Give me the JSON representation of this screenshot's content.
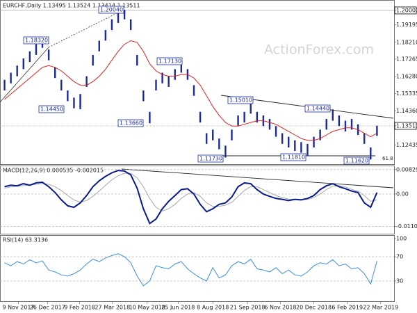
{
  "chart_data": [
    {
      "type": "ohlc",
      "title": "EURCHF,Daily  1.13495 1.13524 1.13414 1.13511",
      "watermark": "ActionForex.com",
      "color": "#1a2a9c",
      "ma_color": "#e02020",
      "xlim": [
        -0.5,
        60.5
      ],
      "ylim": [
        1.1136,
        1.2039
      ],
      "yticks": [
        {
          "value": 1.2,
          "label": "1.20000",
          "boxed": true
        },
        {
          "value": 1.19195,
          "label": "1.19195"
        },
        {
          "value": 1.1821,
          "label": "1.18210"
        },
        {
          "value": 1.17265,
          "label": "1.17265"
        },
        {
          "value": 1.1628,
          "label": "1.16280"
        },
        {
          "value": 1.15335,
          "label": "1.15335"
        },
        {
          "value": 1.1436,
          "label": "1.14360"
        },
        {
          "value": 1.13511,
          "label": "1.13511",
          "boxed": true
        },
        {
          "value": 1.12435,
          "label": "1.12435"
        }
      ],
      "high": [
        1.161,
        1.165,
        1.169,
        1.173,
        1.177,
        1.181,
        1.1832,
        1.178,
        1.168,
        1.161,
        1.155,
        1.151,
        1.153,
        1.163,
        1.175,
        1.183,
        1.189,
        1.195,
        1.199,
        1.2004,
        1.195,
        1.175,
        1.155,
        1.143,
        1.161,
        1.165,
        1.163,
        1.167,
        1.1713,
        1.167,
        1.158,
        1.143,
        1.131,
        1.133,
        1.128,
        1.124,
        1.133,
        1.141,
        1.143,
        1.1501,
        1.143,
        1.141,
        1.139,
        1.135,
        1.131,
        1.129,
        1.127,
        1.126,
        1.125,
        1.129,
        1.133,
        1.139,
        1.1444,
        1.141,
        1.138,
        1.139,
        1.136,
        1.131,
        1.123,
        1.1352
      ],
      "low": [
        1.155,
        1.159,
        1.163,
        1.167,
        1.171,
        1.175,
        1.179,
        1.172,
        1.162,
        1.155,
        1.149,
        1.145,
        1.1445,
        1.157,
        1.169,
        1.177,
        1.183,
        1.189,
        1.193,
        1.195,
        1.189,
        1.169,
        1.149,
        1.1366,
        1.155,
        1.159,
        1.157,
        1.161,
        1.165,
        1.161,
        1.152,
        1.137,
        1.125,
        1.127,
        1.122,
        1.1173,
        1.127,
        1.135,
        1.137,
        1.142,
        1.137,
        1.135,
        1.133,
        1.129,
        1.125,
        1.123,
        1.121,
        1.12,
        1.1181,
        1.123,
        1.127,
        1.133,
        1.138,
        1.135,
        1.132,
        1.133,
        1.13,
        1.125,
        1.1162,
        1.1295
      ],
      "ma_values": [
        1.15,
        1.153,
        1.156,
        1.159,
        1.162,
        1.165,
        1.168,
        1.169,
        1.168,
        1.166,
        1.163,
        1.16,
        1.158,
        1.158,
        1.16,
        1.163,
        1.167,
        1.172,
        1.177,
        1.181,
        1.183,
        1.182,
        1.177,
        1.17,
        1.166,
        1.164,
        1.163,
        1.163,
        1.164,
        1.164,
        1.162,
        1.158,
        1.152,
        1.146,
        1.141,
        1.137,
        1.135,
        1.135,
        1.136,
        1.137,
        1.138,
        1.138,
        1.137,
        1.136,
        1.134,
        1.132,
        1.13,
        1.128,
        1.127,
        1.127,
        1.128,
        1.13,
        1.132,
        1.133,
        1.134,
        1.134,
        1.133,
        1.131,
        1.129,
        1.131
      ],
      "annotations": [
        "1.20040",
        "1.18320",
        "1.17130",
        "1.14450",
        "1.13660",
        "1.15010",
        "1.14440",
        "1.11730",
        "1.11810",
        "1.11620",
        "61.8"
      ]
    },
    {
      "type": "macd",
      "title": "MACD(12,26,9) 0.000535 -0.002015",
      "xlim": [
        -0.5,
        60.5
      ],
      "ylim": [
        -0.013,
        0.0092
      ],
      "yticks": [
        0.008292,
        {
          "value": 0,
          "label": "0.00"
        },
        -0.011015
      ],
      "grid": true,
      "series": [
        {
          "color": "#0a1a8c",
          "values": [
            0.0025,
            0.003,
            0.0028,
            0.0035,
            0.003,
            0.0038,
            0.004,
            0.0025,
            0.0005,
            -0.002,
            -0.004,
            -0.0045,
            -0.003,
            -0.0005,
            0.0025,
            0.0045,
            0.006,
            0.0072,
            0.008,
            0.0078,
            0.0065,
            0.002,
            -0.005,
            -0.01,
            -0.0085,
            -0.005,
            -0.0025,
            -0.0005,
            0.0015,
            0.0018,
            0.0,
            -0.0035,
            -0.006,
            -0.005,
            -0.0035,
            -0.003,
            -0.001,
            0.0025,
            0.0038,
            0.0035,
            0.0015,
            0.0,
            -0.0008,
            -0.0015,
            -0.0018,
            -0.0022,
            -0.0018,
            -0.002,
            -0.0015,
            -0.0005,
            0.0015,
            0.0028,
            0.0035,
            0.0025,
            0.0018,
            0.001,
            0.0005,
            -0.003,
            -0.0045,
            0.0005
          ]
        },
        {
          "color": "#a8a8a8",
          "values": [
            0.002,
            0.0024,
            0.0026,
            0.0029,
            0.003,
            0.0033,
            0.0036,
            0.0033,
            0.0025,
            0.0012,
            -0.0005,
            -0.002,
            -0.0028,
            -0.0022,
            -0.0008,
            0.001,
            0.003,
            0.0048,
            0.0062,
            0.007,
            0.007,
            0.0055,
            0.0025,
            -0.0015,
            -0.0045,
            -0.0058,
            -0.005,
            -0.0035,
            -0.0015,
            0.0,
            0.0005,
            -0.0008,
            -0.003,
            -0.0042,
            -0.0042,
            -0.0038,
            -0.0028,
            -0.0008,
            0.0012,
            0.0025,
            0.0025,
            0.0015,
            0.0005,
            -0.0005,
            -0.0012,
            -0.0017,
            -0.0018,
            -0.0019,
            -0.0018,
            -0.0012,
            0.0,
            0.0015,
            0.0027,
            0.0028,
            0.0024,
            0.0016,
            0.001,
            -0.0005,
            -0.0025,
            -0.002
          ]
        }
      ]
    },
    {
      "type": "line",
      "title": "RSI(14) 63.3136",
      "xlim": [
        -0.5,
        60.5
      ],
      "ylim": [
        0,
        100
      ],
      "yticks": [
        100,
        70,
        30
      ],
      "grid": true,
      "color": "#3a8ee0",
      "values": [
        60,
        55,
        62,
        58,
        65,
        60,
        63,
        48,
        45,
        40,
        38,
        42,
        48,
        58,
        66,
        62,
        68,
        72,
        75,
        70,
        60,
        38,
        22,
        30,
        55,
        52,
        50,
        58,
        62,
        50,
        42,
        35,
        30,
        52,
        35,
        40,
        55,
        62,
        58,
        66,
        50,
        48,
        45,
        52,
        42,
        48,
        40,
        38,
        45,
        55,
        60,
        58,
        65,
        55,
        58,
        50,
        52,
        42,
        25,
        63
      ],
      "xticks": [
        {
          "value": 2.2,
          "label": "9 Nov 2017"
        },
        {
          "value": 6.8,
          "label": "26 Dec 2017"
        },
        {
          "value": 11.9,
          "label": "9 Feb 2018"
        },
        {
          "value": 17.1,
          "label": "27 Mar 2018"
        },
        {
          "value": 22.6,
          "label": "10 May 2018"
        },
        {
          "value": 27.5,
          "label": "25 Jun 2018"
        },
        {
          "value": 33.0,
          "label": "8 Aug 2018"
        },
        {
          "value": 38.5,
          "label": "21 Sep 2018"
        },
        {
          "value": 43.7,
          "label": "6 Nov 2018"
        },
        {
          "value": 49.0,
          "label": "20 Dec 2018"
        },
        {
          "value": 54.3,
          "label": "6 Feb 2019"
        },
        {
          "value": 59.6,
          "label": "22 Mar 2019"
        }
      ]
    }
  ]
}
